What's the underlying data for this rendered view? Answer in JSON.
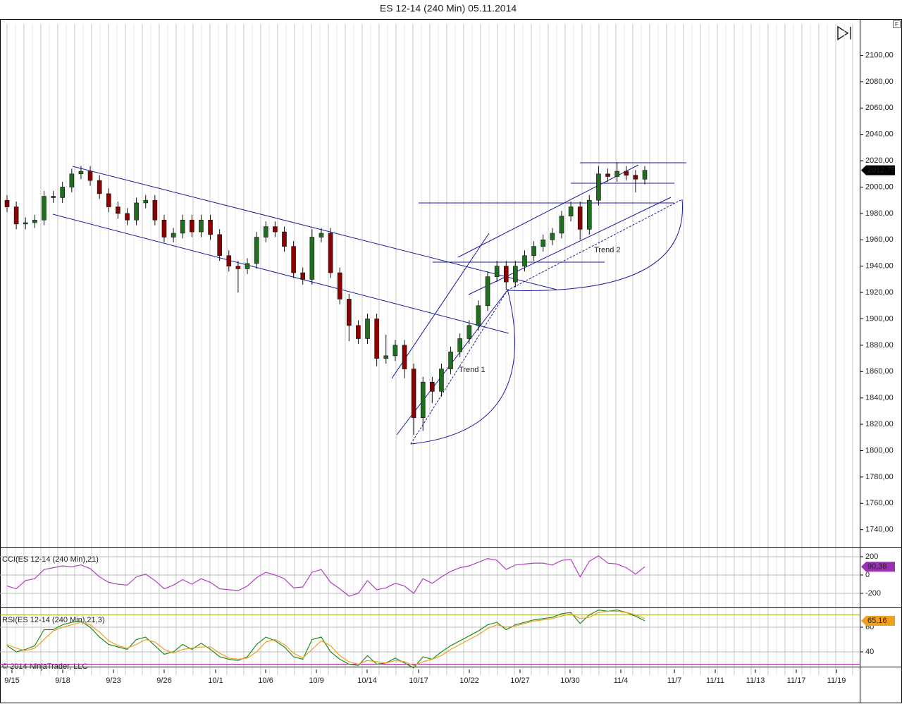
{
  "header": {
    "title": "ES 12-14 (240 Min)  05.11.2014",
    "corner": "F",
    "copyright": "© 2014 NinjaTrader, LLC"
  },
  "x_axis_labels": [
    "9/15",
    "9/18",
    "9/23",
    "9/26",
    "10/1",
    "10/6",
    "10/9",
    "10/14",
    "10/17",
    "10/22",
    "10/27",
    "10/30",
    "11/4",
    "11/7",
    "11/11",
    "11/13",
    "11/17",
    "11/19"
  ],
  "chart_data": [
    {
      "type": "candlestick",
      "annotations": [
        "Trend 1",
        "Trend 2"
      ],
      "last_label": "2012,75",
      "up_color": "#1f6f1f",
      "down_color": "#8b0000",
      "open": [
        1990,
        1985,
        1972,
        1973,
        1975,
        1993,
        1992,
        2000,
        2010,
        2012,
        2005,
        1995,
        1985,
        1980,
        1975,
        1988,
        1990,
        1975,
        1962,
        1965,
        1975,
        1966,
        1975,
        1964,
        1948,
        1940,
        1938,
        1942,
        1962,
        1970,
        1966,
        1955,
        1935,
        1930,
        1962,
        1965,
        1935,
        1915,
        1895,
        1885,
        1900,
        1870,
        1872,
        1880,
        1862,
        1825,
        1852,
        1845,
        1862,
        1875,
        1885,
        1895,
        1910,
        1932,
        1940,
        1928,
        1940,
        1948,
        1955,
        1960,
        1965,
        1978,
        1985,
        1968,
        1990,
        2010,
        2008,
        2012,
        2009,
        2006
      ],
      "high": [
        1994,
        1989,
        1977,
        1979,
        1997,
        1997,
        2004,
        2014,
        2016,
        2016,
        2009,
        1999,
        1989,
        1984,
        1992,
        1994,
        1994,
        1979,
        1969,
        1979,
        1979,
        1979,
        1979,
        1968,
        1952,
        1944,
        1946,
        1966,
        1974,
        1974,
        1970,
        1959,
        1939,
        1968,
        1969,
        1969,
        1939,
        1919,
        1899,
        1904,
        1904,
        1888,
        1884,
        1884,
        1866,
        1856,
        1856,
        1866,
        1879,
        1889,
        1899,
        1914,
        1936,
        1944,
        1944,
        1944,
        1952,
        1959,
        1964,
        1969,
        1982,
        1989,
        1989,
        1994,
        2016,
        2014,
        2019,
        2016,
        2013,
        2016
      ],
      "low": [
        1981,
        1968,
        1968,
        1969,
        1971,
        1988,
        1988,
        1996,
        2006,
        2001,
        1991,
        1981,
        1976,
        1971,
        1971,
        1984,
        1971,
        1958,
        1958,
        1961,
        1962,
        1962,
        1960,
        1944,
        1936,
        1920,
        1934,
        1938,
        1958,
        1962,
        1951,
        1931,
        1926,
        1926,
        1958,
        1931,
        1911,
        1883,
        1881,
        1881,
        1864,
        1866,
        1868,
        1855,
        1812,
        1815,
        1836,
        1841,
        1858,
        1871,
        1881,
        1891,
        1906,
        1928,
        1922,
        1924,
        1936,
        1944,
        1951,
        1956,
        1961,
        1974,
        1960,
        1964,
        1986,
        2004,
        2004,
        2005,
        1996,
        2002
      ],
      "close": [
        1985,
        1972,
        1973,
        1975,
        1993,
        1992,
        2000,
        2010,
        2012,
        2005,
        1995,
        1985,
        1980,
        1975,
        1988,
        1990,
        1975,
        1962,
        1965,
        1975,
        1966,
        1975,
        1964,
        1948,
        1940,
        1938,
        1942,
        1962,
        1970,
        1966,
        1955,
        1935,
        1930,
        1962,
        1965,
        1935,
        1915,
        1895,
        1885,
        1900,
        1870,
        1872,
        1880,
        1862,
        1825,
        1852,
        1845,
        1862,
        1875,
        1885,
        1895,
        1910,
        1932,
        1940,
        1928,
        1940,
        1948,
        1955,
        1960,
        1965,
        1978,
        1985,
        1968,
        1990,
        2010,
        2008,
        2012,
        2009,
        2006,
        2012.75
      ],
      "ylim": [
        1727,
        2127
      ],
      "yticks": [
        {
          "value": 1740,
          "label": "1740,00"
        },
        {
          "value": 1760,
          "label": "1760,00"
        },
        {
          "value": 1780,
          "label": "1780,00"
        },
        {
          "value": 1800,
          "label": "1800,00"
        },
        {
          "value": 1820,
          "label": "1820,00"
        },
        {
          "value": 1840,
          "label": "1840,00"
        },
        {
          "value": 1860,
          "label": "1860,00"
        },
        {
          "value": 1880,
          "label": "1880,00"
        },
        {
          "value": 1900,
          "label": "1900,00"
        },
        {
          "value": 1920,
          "label": "1920,00"
        },
        {
          "value": 1940,
          "label": "1940,00"
        },
        {
          "value": 1960,
          "label": "1960,00"
        },
        {
          "value": 1980,
          "label": "1980,00"
        },
        {
          "value": 2000,
          "label": "2000,00"
        },
        {
          "value": 2020,
          "label": "2020,00"
        },
        {
          "value": 2040,
          "label": "2040,00"
        },
        {
          "value": 2060,
          "label": "2060,00"
        },
        {
          "value": 2080,
          "label": "2080,00"
        },
        {
          "value": 2100,
          "label": "2100,00"
        }
      ]
    },
    {
      "type": "line",
      "title": "CCI(ES 12-14 (240 Min),21)",
      "last_label": "90,38",
      "series": [
        {
          "color": "#b040c0",
          "values": [
            -120,
            -150,
            -60,
            -40,
            60,
            80,
            100,
            90,
            110,
            70,
            -20,
            -80,
            -100,
            -110,
            -20,
            10,
            -60,
            -150,
            -110,
            -50,
            -100,
            -40,
            -80,
            -150,
            -160,
            -170,
            -120,
            -30,
            30,
            0,
            -40,
            -140,
            -130,
            30,
            60,
            -80,
            -150,
            -230,
            -200,
            -60,
            -160,
            -140,
            -90,
            -120,
            -200,
            -40,
            -90,
            -20,
            40,
            80,
            100,
            140,
            180,
            160,
            60,
            110,
            120,
            130,
            130,
            110,
            160,
            170,
            -20,
            150,
            210,
            130,
            120,
            80,
            10,
            90.38
          ]
        }
      ],
      "ylim": [
        -354,
        292
      ],
      "yticks": [
        -200,
        0,
        200
      ]
    },
    {
      "type": "line",
      "title": "RSI(ES 12-14 (240 Min),21,3)",
      "last_label": "65,16",
      "series": [
        {
          "color": "#228b22",
          "values": [
            45,
            40,
            42,
            45,
            58,
            58,
            62,
            64,
            65,
            60,
            52,
            46,
            44,
            42,
            50,
            52,
            45,
            38,
            40,
            46,
            42,
            47,
            42,
            36,
            34,
            33,
            36,
            46,
            52,
            49,
            44,
            36,
            34,
            50,
            52,
            40,
            34,
            30,
            29,
            37,
            30,
            31,
            35,
            31,
            27,
            36,
            34,
            40,
            45,
            49,
            53,
            57,
            62,
            64,
            58,
            62,
            64,
            66,
            67,
            68,
            71,
            72,
            63,
            70,
            74,
            73,
            74,
            72,
            69,
            65.16
          ]
        },
        {
          "color": "#f0a020",
          "values": [
            46,
            43,
            41,
            43,
            50,
            57,
            60,
            62,
            64,
            62,
            56,
            49,
            45,
            43,
            46,
            50,
            48,
            42,
            39,
            42,
            43,
            44,
            44,
            39,
            35,
            34,
            35,
            40,
            48,
            50,
            46,
            39,
            35,
            42,
            49,
            45,
            37,
            32,
            30,
            33,
            32,
            31,
            33,
            32,
            29,
            32,
            34,
            37,
            42,
            46,
            50,
            54,
            59,
            62,
            60,
            61,
            63,
            65,
            66,
            67,
            69,
            71,
            67,
            68,
            72,
            73,
            73,
            72,
            70,
            67
          ]
        }
      ],
      "levels": [
        {
          "value": 70,
          "color": "#9aa820"
        },
        {
          "value": 30,
          "color": "#a020a0"
        }
      ],
      "ylim": [
        28,
        74.9
      ],
      "yticks": [
        40,
        60
      ]
    }
  ]
}
